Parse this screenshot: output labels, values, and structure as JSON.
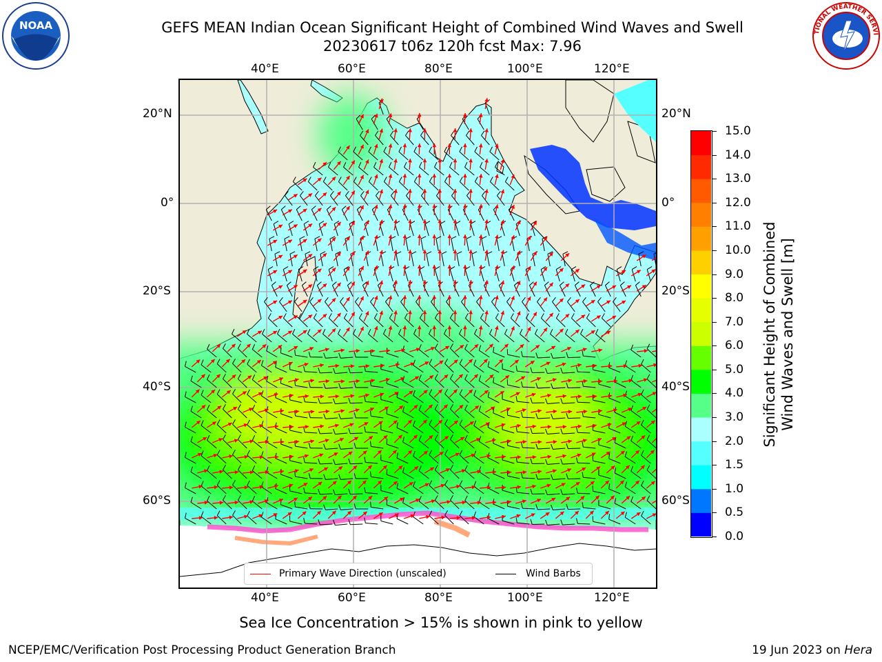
{
  "title": {
    "line1": "GEFS MEAN Indian Ocean Significant Height of Combined Wind Waves and Swell",
    "line2": "20230617 t06z 120h fcst   Max: 7.96"
  },
  "logos": {
    "left": {
      "icon": "noaa-logo",
      "text": "NOAA"
    },
    "right": {
      "icon": "nws-logo",
      "text": "NATIONAL WEATHER SERVICE"
    }
  },
  "map": {
    "lon_ticks_top": [
      "40°E",
      "60°E",
      "80°E",
      "100°E",
      "120°E"
    ],
    "lon_ticks_bottom": [
      "40°E",
      "60°E",
      "80°E",
      "100°E",
      "120°E"
    ],
    "lat_ticks_left": [
      "20°N",
      "0°",
      "20°S",
      "40°S",
      "60°S"
    ],
    "lat_ticks_right": [
      "20°N",
      "0°",
      "20°S",
      "40°S",
      "60°S"
    ],
    "extent": {
      "lon": [
        20,
        130
      ],
      "lat": [
        -72,
        28
      ]
    },
    "colors": {
      "land": "#efedd9",
      "grid": "#b0b0b0",
      "wave_arrow": "#ff0000",
      "barb": "#000000"
    }
  },
  "legend": {
    "primary_label": "Primary Wave Direction (unscaled)",
    "primary_color": "#ff0000",
    "barbs_label": "Wind Barbs",
    "barbs_color": "#000000"
  },
  "colorbar": {
    "label_line1": "Significant Height of Combined",
    "label_line2": "Wind Waves and Swell [m]",
    "ticks": [
      "0.0",
      "0.5",
      "1.0",
      "1.5",
      "2.0",
      "3.0",
      "4.0",
      "5.0",
      "6.0",
      "7.0",
      "8.0",
      "9.0",
      "10.0",
      "11.0",
      "12.0",
      "13.0",
      "14.0",
      "15.0"
    ],
    "colors": [
      "#0000ff",
      "#0077ff",
      "#00ffff",
      "#55ffff",
      "#aaffff",
      "#55ff88",
      "#00ff00",
      "#66ff00",
      "#ccff00",
      "#e6ff00",
      "#ffff00",
      "#ffd000",
      "#ffa000",
      "#ff8000",
      "#ff5a00",
      "#ff2a00",
      "#ff0000"
    ]
  },
  "notes": {
    "ice": "Sea Ice Concentration > 15% is shown in pink to yellow",
    "footer_left": "NCEP/EMC/Verification Post Processing Product Generation Branch",
    "footer_date": "19 Jun 2023 on ",
    "footer_host": "Hera"
  }
}
